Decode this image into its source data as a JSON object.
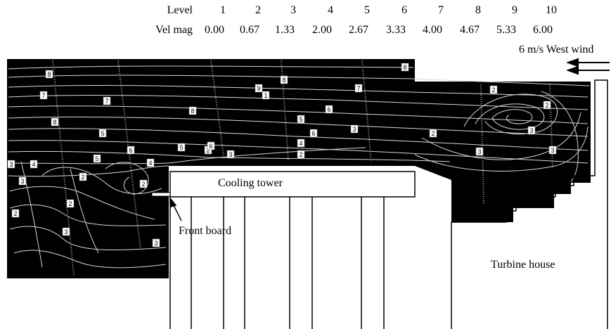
{
  "legend": {
    "level_heading": "Level",
    "vel_heading": "Vel mag",
    "levels": [
      "1",
      "2",
      "3",
      "4",
      "5",
      "6",
      "7",
      "8",
      "9",
      "10"
    ],
    "velocities": [
      "0.00",
      "0.67",
      "1.33",
      "2.00",
      "2.67",
      "3.33",
      "4.00",
      "4.67",
      "5.33",
      "6.00"
    ]
  },
  "wind": {
    "label": "6 m/s  West wind"
  },
  "labels": {
    "cooling_tower": "Cooling tower",
    "front_board": "Front board",
    "turbine_house": "Turbine house"
  },
  "contour_tags": {
    "left": [
      "8",
      "7",
      "8",
      "5",
      "4",
      "3",
      "2",
      "2",
      "2",
      "3",
      "3"
    ],
    "mid": [
      "9",
      "8",
      "7",
      "1",
      "8",
      "6",
      "5",
      "5",
      "6",
      "4",
      "4",
      "2",
      "2",
      "5",
      "3",
      "3",
      "2",
      "6"
    ],
    "right": [
      "8",
      "7",
      "6",
      "3",
      "2",
      "2",
      "2",
      "3",
      "3",
      "3"
    ]
  },
  "colors": {
    "field": "#000000",
    "streamline": "#d8d8d8",
    "outline": "#000000",
    "background": "#ffffff"
  }
}
